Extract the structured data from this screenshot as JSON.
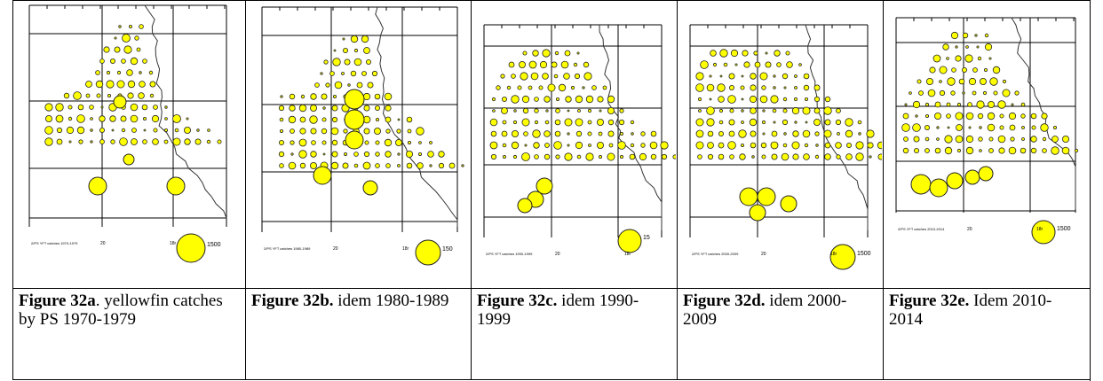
{
  "colors": {
    "dot_fill": "#ffff00",
    "dot_stroke": "#222222",
    "line": "#000000"
  },
  "panels": [
    {
      "map_label": "2/PS YFT catches 1970-1979",
      "lon_label_1": "20",
      "lon_label_2": "18r",
      "scale_label": "1500",
      "caption_bold": "Figure 32a",
      "caption_rest": ". yellowfin catches by PS 1970-1979"
    },
    {
      "map_label": "2/PS YFT catches 1980-1989",
      "lon_label_1": "20",
      "lon_label_2": "18r",
      "scale_label": "150",
      "caption_bold": "Figure 32b.",
      "caption_rest": " idem 1980-1989"
    },
    {
      "map_label": "2/PS YFT catches 1990-1999",
      "lon_label_1": "20",
      "lon_label_2": "18r",
      "scale_label": "15",
      "caption_bold": "Figure 32c.",
      "caption_rest": " idem 1990-1999"
    },
    {
      "map_label": "2/PS YFT catches 2000-2009",
      "lon_label_1": "20",
      "lon_label_2": "18r",
      "scale_label": "1500",
      "caption_bold": "Figure 32d.",
      "caption_rest": " idem 2000-2009"
    },
    {
      "map_label": "2/PS YFT catches 2010-2014",
      "lon_label_1": "20",
      "lon_label_2": "18r",
      "scale_label": "1500",
      "caption_bold": "Figure 32e.",
      "caption_rest": " Idem 2010-2014"
    }
  ]
}
